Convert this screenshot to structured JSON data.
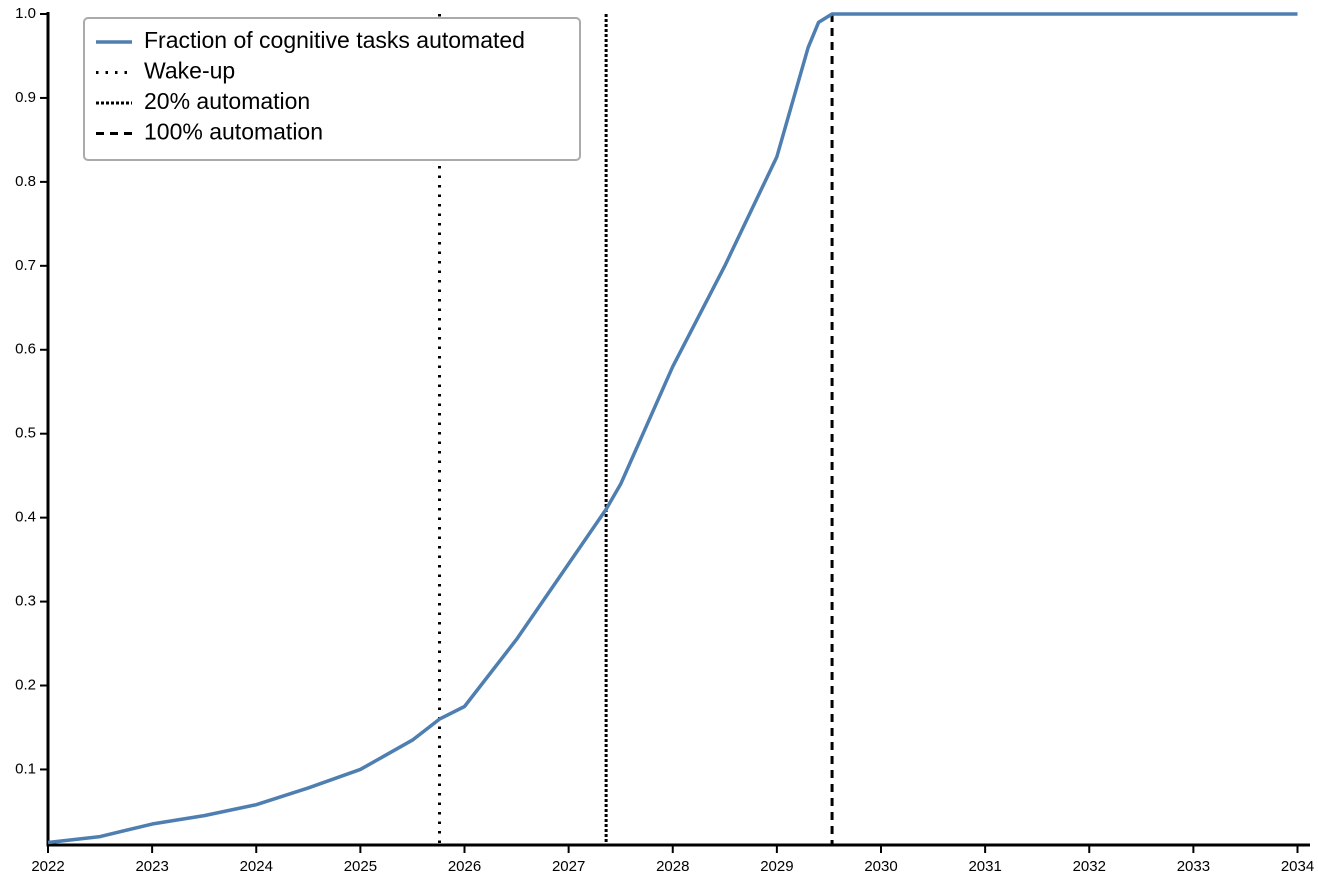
{
  "chart_data": {
    "type": "line",
    "series": [
      {
        "name": "Fraction of cognitive tasks automated",
        "color": "#4e7fb0",
        "x": [
          2022,
          2022.5,
          2023,
          2023.5,
          2024,
          2024.5,
          2025,
          2025.5,
          2025.76,
          2026,
          2026.5,
          2027,
          2027.36,
          2027.5,
          2028,
          2028.5,
          2029,
          2029.3,
          2029.4,
          2029.53,
          2034
        ],
        "values": [
          0.013,
          0.02,
          0.035,
          0.045,
          0.058,
          0.078,
          0.1,
          0.135,
          0.16,
          0.175,
          0.255,
          0.345,
          0.41,
          0.44,
          0.58,
          0.7,
          0.83,
          0.96,
          0.99,
          1.0,
          1.0
        ]
      }
    ],
    "vlines": [
      {
        "name": "Wake-up",
        "x": 2025.76,
        "style": "dotted"
      },
      {
        "name": "20% automation",
        "x": 2027.36,
        "style": "densely-dashed"
      },
      {
        "name": "100% automation",
        "x": 2029.53,
        "style": "dashed"
      }
    ],
    "xlim": [
      2022,
      2034.12
    ],
    "xticks": [
      2022,
      2023,
      2024,
      2025,
      2026,
      2027,
      2028,
      2029,
      2030,
      2031,
      2032,
      2033,
      2034
    ],
    "ylim": [
      0.01,
      1.0
    ],
    "yticks": [
      0.1,
      0.2,
      0.3,
      0.4,
      0.5,
      0.6,
      0.7,
      0.8,
      0.9,
      {
        "value": 1,
        "label": "1.0"
      }
    ],
    "legend": "upper-left"
  }
}
